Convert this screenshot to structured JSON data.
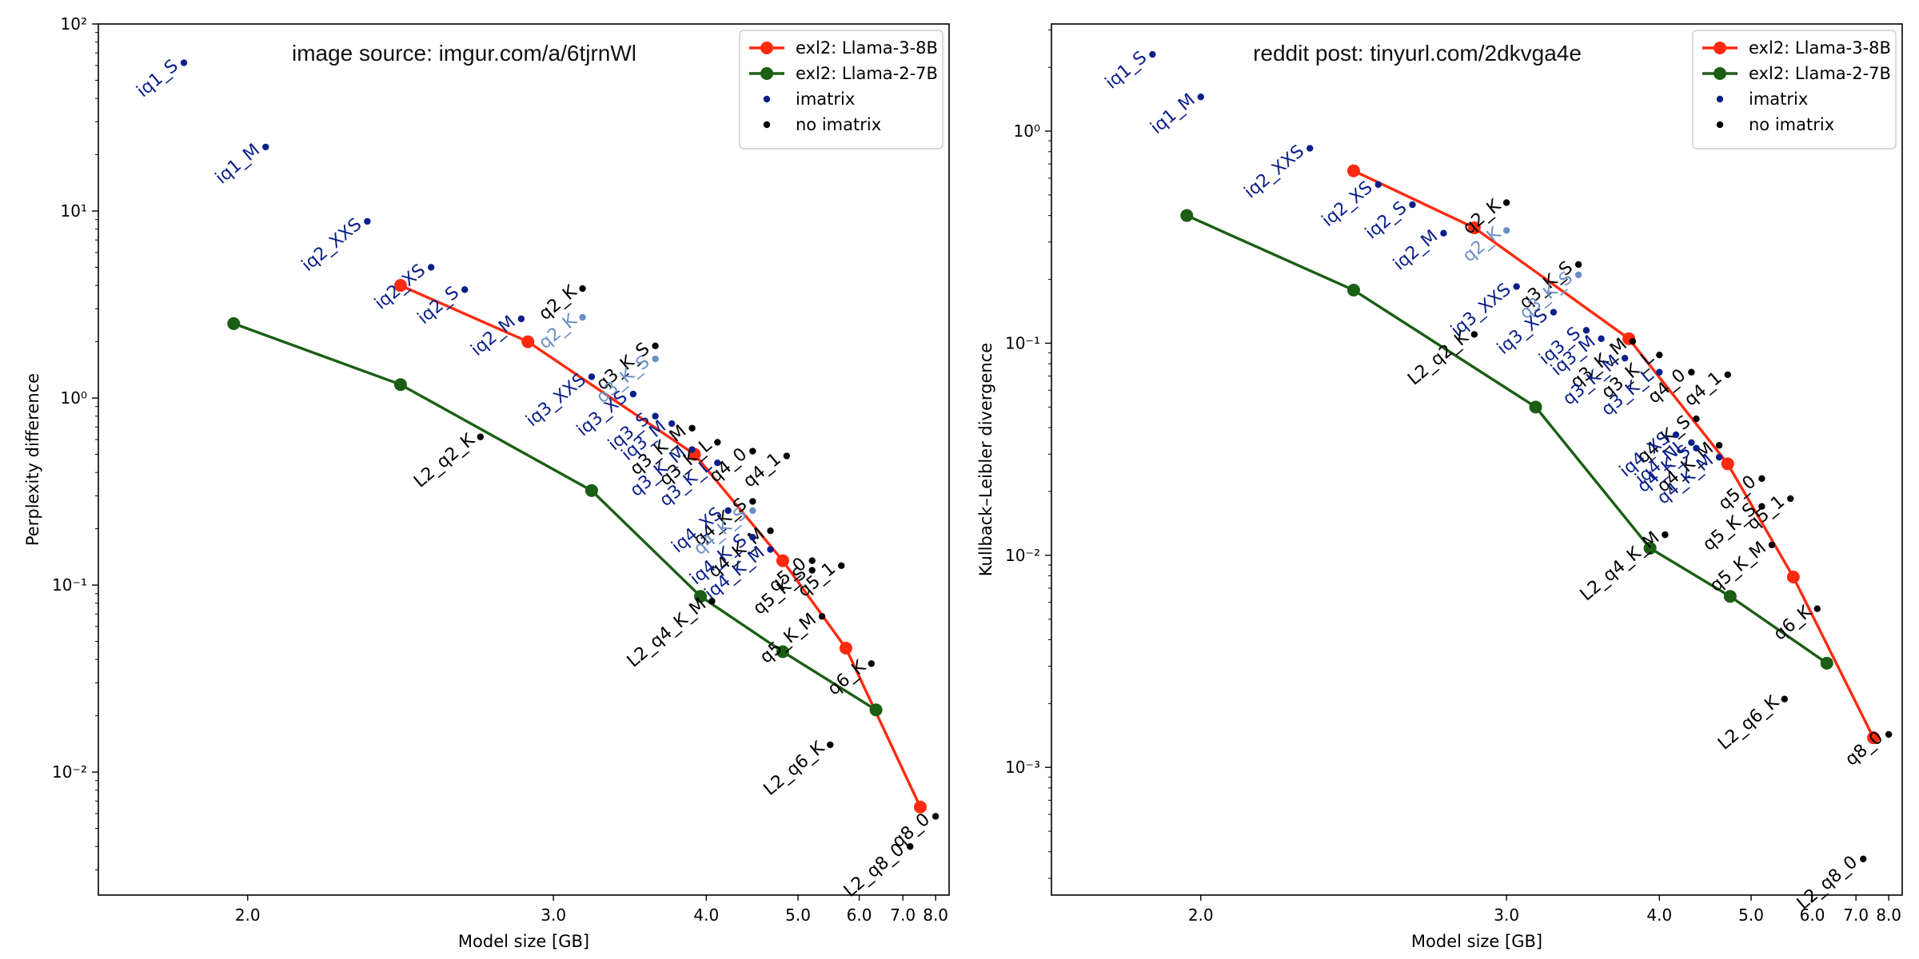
{
  "chart_data": [
    {
      "type": "scatter",
      "id": "left",
      "title": "",
      "annotation": "image source: imgur.com/a/6tjrnWl",
      "xlabel": "Model size [GB]",
      "ylabel": "Perplexity difference",
      "xscale": "reciprocal",
      "yscale": "log",
      "xlim": [
        1.72,
        8.5
      ],
      "ylim": [
        0.0022,
        100
      ],
      "xticks": [
        2.0,
        3.0,
        4.0,
        5.0,
        6.0,
        7.0,
        8.0
      ],
      "xtick_labels": [
        "2.0",
        "3.0",
        "4.0",
        "5.0",
        "6.0",
        "7.0",
        "8.0"
      ],
      "yticks": [
        0.01,
        0.1,
        1,
        10,
        100
      ],
      "ytick_labels": [
        "10⁻²",
        "10⁻¹",
        "10⁰",
        "10¹",
        "10²"
      ],
      "grid": false,
      "legend_position": "top-right",
      "legend": [
        {
          "label": "exl2: Llama-3-8B",
          "style": "line-marker",
          "color": "#ff2a10"
        },
        {
          "label": "exl2: Llama-2-7B",
          "style": "line-marker",
          "color": "#1b5e14"
        },
        {
          "label": "imatrix",
          "style": "dot",
          "color": "#0a1f8a"
        },
        {
          "label": "no imatrix",
          "style": "dot",
          "color": "#000000"
        }
      ],
      "lines": [
        {
          "name": "exl2: Llama-3-8B",
          "color": "#ff2a10",
          "points": [
            [
              2.4,
              4.0
            ],
            [
              2.88,
              2.0
            ],
            [
              3.9,
              0.5
            ],
            [
              4.8,
              0.135
            ],
            [
              5.75,
              0.046
            ],
            [
              7.5,
              0.0065
            ]
          ]
        },
        {
          "name": "exl2: Llama-2-7B",
          "color": "#1b5e14",
          "points": [
            [
              1.97,
              2.5
            ],
            [
              2.4,
              1.18
            ],
            [
              3.2,
              0.32
            ],
            [
              3.95,
              0.087
            ],
            [
              4.8,
              0.044
            ],
            [
              6.35,
              0.0215
            ]
          ]
        }
      ],
      "points": [
        {
          "label": "iq1_S",
          "x": 1.87,
          "y": 62,
          "color": "#0a1f8a"
        },
        {
          "label": "iq1_M",
          "x": 2.04,
          "y": 22,
          "color": "#0a1f8a"
        },
        {
          "label": "iq2_XXS",
          "x": 2.3,
          "y": 8.8,
          "color": "#0a1f8a"
        },
        {
          "label": "iq2_XS",
          "x": 2.5,
          "y": 5.0,
          "color": "#0a1f8a"
        },
        {
          "label": "iq2_S",
          "x": 2.62,
          "y": 3.8,
          "color": "#0a1f8a"
        },
        {
          "label": "iq2_M",
          "x": 2.85,
          "y": 2.65,
          "color": "#0a1f8a"
        },
        {
          "label": "q2_K",
          "x": 3.15,
          "y": 3.85,
          "color": "#000000"
        },
        {
          "label": "q2_K",
          "x": 3.15,
          "y": 2.7,
          "color": "#6b8fc4"
        },
        {
          "label": "q3_K_S",
          "x": 3.6,
          "y": 1.9,
          "color": "#000000"
        },
        {
          "label": "q3_K_S",
          "x": 3.6,
          "y": 1.62,
          "color": "#6b8fc4"
        },
        {
          "label": "iq3_XXS",
          "x": 3.2,
          "y": 1.3,
          "color": "#0a1f8a"
        },
        {
          "label": "iq3_XS",
          "x": 3.45,
          "y": 1.05,
          "color": "#0a1f8a"
        },
        {
          "label": "iq3_S",
          "x": 3.6,
          "y": 0.8,
          "color": "#0a1f8a"
        },
        {
          "label": "iq3_M",
          "x": 3.72,
          "y": 0.73,
          "color": "#0a1f8a"
        },
        {
          "label": "q3_K_M",
          "x": 3.88,
          "y": 0.69,
          "color": "#000000"
        },
        {
          "label": "q3_K_M",
          "x": 3.88,
          "y": 0.53,
          "color": "#0a1f8a"
        },
        {
          "label": "q3_K_L",
          "x": 4.1,
          "y": 0.58,
          "color": "#000000"
        },
        {
          "label": "q3_K_L",
          "x": 4.1,
          "y": 0.45,
          "color": "#0a1f8a"
        },
        {
          "label": "q4_0",
          "x": 4.45,
          "y": 0.52,
          "color": "#000000"
        },
        {
          "label": "q4_1",
          "x": 4.85,
          "y": 0.49,
          "color": "#000000"
        },
        {
          "label": "q4_K_S",
          "x": 4.45,
          "y": 0.28,
          "color": "#000000"
        },
        {
          "label": "q4_K_S",
          "x": 4.45,
          "y": 0.25,
          "color": "#6b8fc4"
        },
        {
          "label": "q4_K_M",
          "x": 4.65,
          "y": 0.195,
          "color": "#000000"
        },
        {
          "label": "iq4_XS",
          "x": 4.2,
          "y": 0.25,
          "color": "#0a1f8a"
        },
        {
          "label": "iq4_K_S",
          "x": 4.45,
          "y": 0.18,
          "color": "#0a1f8a"
        },
        {
          "label": "iq4_K_M",
          "x": 4.65,
          "y": 0.155,
          "color": "#0a1f8a"
        },
        {
          "label": "q5_0",
          "x": 5.2,
          "y": 0.135,
          "color": "#000000"
        },
        {
          "label": "q5_1",
          "x": 5.67,
          "y": 0.127,
          "color": "#000000"
        },
        {
          "label": "q5_K_S",
          "x": 5.2,
          "y": 0.12,
          "color": "#000000"
        },
        {
          "label": "q5_K_M",
          "x": 5.35,
          "y": 0.068,
          "color": "#000000"
        },
        {
          "label": "q6_K",
          "x": 6.25,
          "y": 0.038,
          "color": "#000000"
        },
        {
          "label": "q8_0",
          "x": 8.0,
          "y": 0.0058,
          "color": "#000000"
        },
        {
          "label": "L2_q2_K",
          "x": 2.68,
          "y": 0.62,
          "color": "#000000"
        },
        {
          "label": "L2_q4_K_M",
          "x": 4.05,
          "y": 0.082,
          "color": "#000000"
        },
        {
          "label": "L2_q6_K",
          "x": 5.48,
          "y": 0.014,
          "color": "#000000"
        },
        {
          "label": "L2_q8_0",
          "x": 7.2,
          "y": 0.004,
          "color": "#000000"
        }
      ]
    },
    {
      "type": "scatter",
      "id": "right",
      "title": "",
      "annotation": "reddit post: tinyurl.com/2dkvga4e",
      "xlabel": "Model size [GB]",
      "ylabel": "Kullback–Leibler divergence",
      "xscale": "reciprocal",
      "yscale": "log",
      "xlim": [
        1.72,
        8.5
      ],
      "ylim": [
        0.00025,
        3.2
      ],
      "xticks": [
        2.0,
        3.0,
        4.0,
        5.0,
        6.0,
        7.0,
        8.0
      ],
      "xtick_labels": [
        "2.0",
        "3.0",
        "4.0",
        "5.0",
        "6.0",
        "7.0",
        "8.0"
      ],
      "yticks": [
        0.001,
        0.01,
        0.1,
        1
      ],
      "ytick_labels": [
        "10⁻³",
        "10⁻²",
        "10⁻¹",
        "10⁰"
      ],
      "grid": false,
      "legend_position": "top-right",
      "legend": [
        {
          "label": "exl2: Llama-3-8B",
          "style": "line-marker",
          "color": "#ff2a10"
        },
        {
          "label": "exl2: Llama-2-7B",
          "style": "line-marker",
          "color": "#1b5e14"
        },
        {
          "label": "imatrix",
          "style": "dot",
          "color": "#0a1f8a"
        },
        {
          "label": "no imatrix",
          "style": "dot",
          "color": "#000000"
        }
      ],
      "lines": [
        {
          "name": "exl2: Llama-3-8B",
          "color": "#ff2a10",
          "points": [
            [
              2.4,
              0.65
            ],
            [
              2.85,
              0.35
            ],
            [
              3.75,
              0.105
            ],
            [
              4.7,
              0.027
            ],
            [
              5.65,
              0.0079
            ],
            [
              7.5,
              0.00138
            ]
          ]
        },
        {
          "name": "exl2: Llama-2-7B",
          "color": "#1b5e14",
          "points": [
            [
              1.97,
              0.4
            ],
            [
              2.4,
              0.178
            ],
            [
              3.15,
              0.05
            ],
            [
              3.92,
              0.0108
            ],
            [
              4.73,
              0.0064
            ],
            [
              6.3,
              0.0031
            ]
          ]
        }
      ],
      "points": [
        {
          "label": "iq1_S",
          "x": 1.9,
          "y": 2.3,
          "color": "#0a1f8a"
        },
        {
          "label": "iq1_M",
          "x": 2.0,
          "y": 1.45,
          "color": "#0a1f8a"
        },
        {
          "label": "iq2_XXS",
          "x": 2.27,
          "y": 0.83,
          "color": "#0a1f8a"
        },
        {
          "label": "iq2_XS",
          "x": 2.48,
          "y": 0.56,
          "color": "#0a1f8a"
        },
        {
          "label": "iq2_S",
          "x": 2.6,
          "y": 0.45,
          "color": "#0a1f8a"
        },
        {
          "label": "iq2_M",
          "x": 2.72,
          "y": 0.33,
          "color": "#0a1f8a"
        },
        {
          "label": "q2_K",
          "x": 3.0,
          "y": 0.46,
          "color": "#000000"
        },
        {
          "label": "q2_K",
          "x": 3.0,
          "y": 0.34,
          "color": "#6b8fc4"
        },
        {
          "label": "q3_K_S",
          "x": 3.4,
          "y": 0.235,
          "color": "#000000"
        },
        {
          "label": "q3_K_S",
          "x": 3.4,
          "y": 0.21,
          "color": "#6b8fc4"
        },
        {
          "label": "iq3_XXS",
          "x": 3.05,
          "y": 0.185,
          "color": "#0a1f8a"
        },
        {
          "label": "iq3_XS",
          "x": 3.25,
          "y": 0.14,
          "color": "#0a1f8a"
        },
        {
          "label": "iq3_S",
          "x": 3.45,
          "y": 0.115,
          "color": "#0a1f8a"
        },
        {
          "label": "iq3_M",
          "x": 3.55,
          "y": 0.105,
          "color": "#0a1f8a"
        },
        {
          "label": "q3_K_M",
          "x": 3.78,
          "y": 0.102,
          "color": "#000000"
        },
        {
          "label": "q3_K_M",
          "x": 3.72,
          "y": 0.085,
          "color": "#0a1f8a"
        },
        {
          "label": "q3_K_L",
          "x": 4.0,
          "y": 0.088,
          "color": "#000000"
        },
        {
          "label": "q3_K_L",
          "x": 4.0,
          "y": 0.073,
          "color": "#0a1f8a"
        },
        {
          "label": "q4_0",
          "x": 4.3,
          "y": 0.073,
          "color": "#000000"
        },
        {
          "label": "q4_1",
          "x": 4.7,
          "y": 0.071,
          "color": "#000000"
        },
        {
          "label": "q4_K_S",
          "x": 4.35,
          "y": 0.044,
          "color": "#000000"
        },
        {
          "label": "q4_K_M",
          "x": 4.6,
          "y": 0.033,
          "color": "#000000"
        },
        {
          "label": "iq4_XS",
          "x": 4.15,
          "y": 0.037,
          "color": "#0a1f8a"
        },
        {
          "label": "iq4_NL",
          "x": 4.3,
          "y": 0.034,
          "color": "#0a1f8a"
        },
        {
          "label": "q4_K_S",
          "x": 4.35,
          "y": 0.032,
          "color": "#0a1f8a"
        },
        {
          "label": "q4_K_M",
          "x": 4.6,
          "y": 0.029,
          "color": "#0a1f8a"
        },
        {
          "label": "q5_0",
          "x": 5.15,
          "y": 0.023,
          "color": "#000000"
        },
        {
          "label": "q5_1",
          "x": 5.6,
          "y": 0.0185,
          "color": "#000000"
        },
        {
          "label": "q5_K_S",
          "x": 5.15,
          "y": 0.017,
          "color": "#000000"
        },
        {
          "label": "q5_K_M",
          "x": 5.3,
          "y": 0.0112,
          "color": "#000000"
        },
        {
          "label": "q6_K",
          "x": 6.1,
          "y": 0.0056,
          "color": "#000000"
        },
        {
          "label": "q8_0",
          "x": 8.0,
          "y": 0.00143,
          "color": "#000000"
        },
        {
          "label": "L2_q2_K",
          "x": 2.85,
          "y": 0.11,
          "color": "#000000"
        },
        {
          "label": "L2_q4_K_M",
          "x": 4.05,
          "y": 0.0125,
          "color": "#000000"
        },
        {
          "label": "L2_q6_K",
          "x": 5.5,
          "y": 0.0021,
          "color": "#000000"
        },
        {
          "label": "L2_q8_0",
          "x": 7.2,
          "y": 0.00037,
          "color": "#000000"
        }
      ]
    }
  ]
}
